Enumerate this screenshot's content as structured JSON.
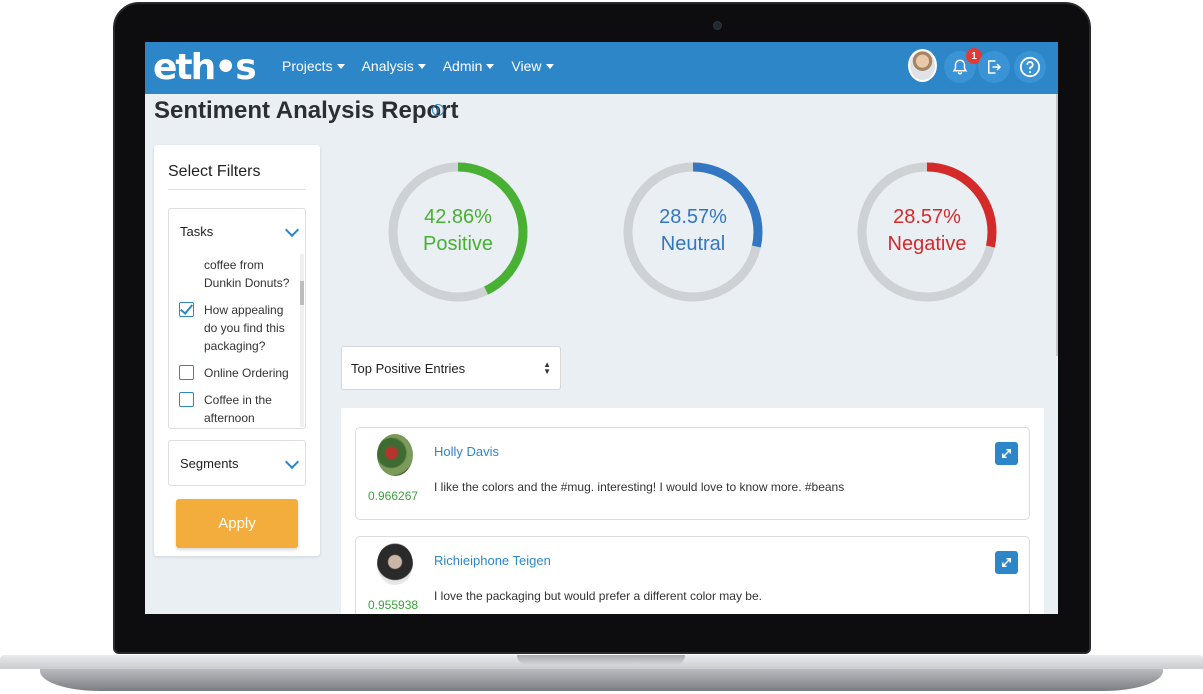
{
  "app": {
    "logo_text": "eth•s",
    "nav": [
      {
        "label": "Projects"
      },
      {
        "label": "Analysis"
      },
      {
        "label": "Admin"
      },
      {
        "label": "View"
      }
    ],
    "notification_count": "1",
    "icons": [
      "user-avatar",
      "bell-icon",
      "logout-icon",
      "help-icon"
    ]
  },
  "page": {
    "title": "Sentiment Analysis Report",
    "info_icon": "i"
  },
  "filters": {
    "title": "Select Filters",
    "tasks_label": "Tasks",
    "tasks": [
      {
        "label": "coffee from Dunkin Donuts?",
        "checked": null
      },
      {
        "label": "How appealing do you find this packaging?",
        "checked": true
      },
      {
        "label": "Online Ordering",
        "checked": false
      },
      {
        "label": "Coffee in the afternoon",
        "checked": false
      }
    ],
    "segments_label": "Segments",
    "apply_label": "Apply"
  },
  "sentiment": [
    {
      "percent": "42.86%",
      "label": "Positive",
      "fraction": 0.4286,
      "color": "#48b133"
    },
    {
      "percent": "28.57%",
      "label": "Neutral",
      "fraction": 0.2857,
      "color": "#3376c1"
    },
    {
      "percent": "28.57%",
      "label": "Negative",
      "fraction": 0.2857,
      "color": "#d42a2a"
    }
  ],
  "entries_select": {
    "value": "Top Positive Entries"
  },
  "entries": [
    {
      "name": "Holly Davis",
      "score": "0.966267",
      "text": "I like the colors and the #mug. interesting! I would love to know more. #beans"
    },
    {
      "name": "Richieiphone Teigen",
      "score": "0.955938",
      "text": "I love the packaging but would prefer a different color may be."
    }
  ],
  "colors": {
    "brand": "#2d86c8",
    "apply": "#f3ad3c",
    "score": "#39a339",
    "track": "#cfd2d4"
  }
}
